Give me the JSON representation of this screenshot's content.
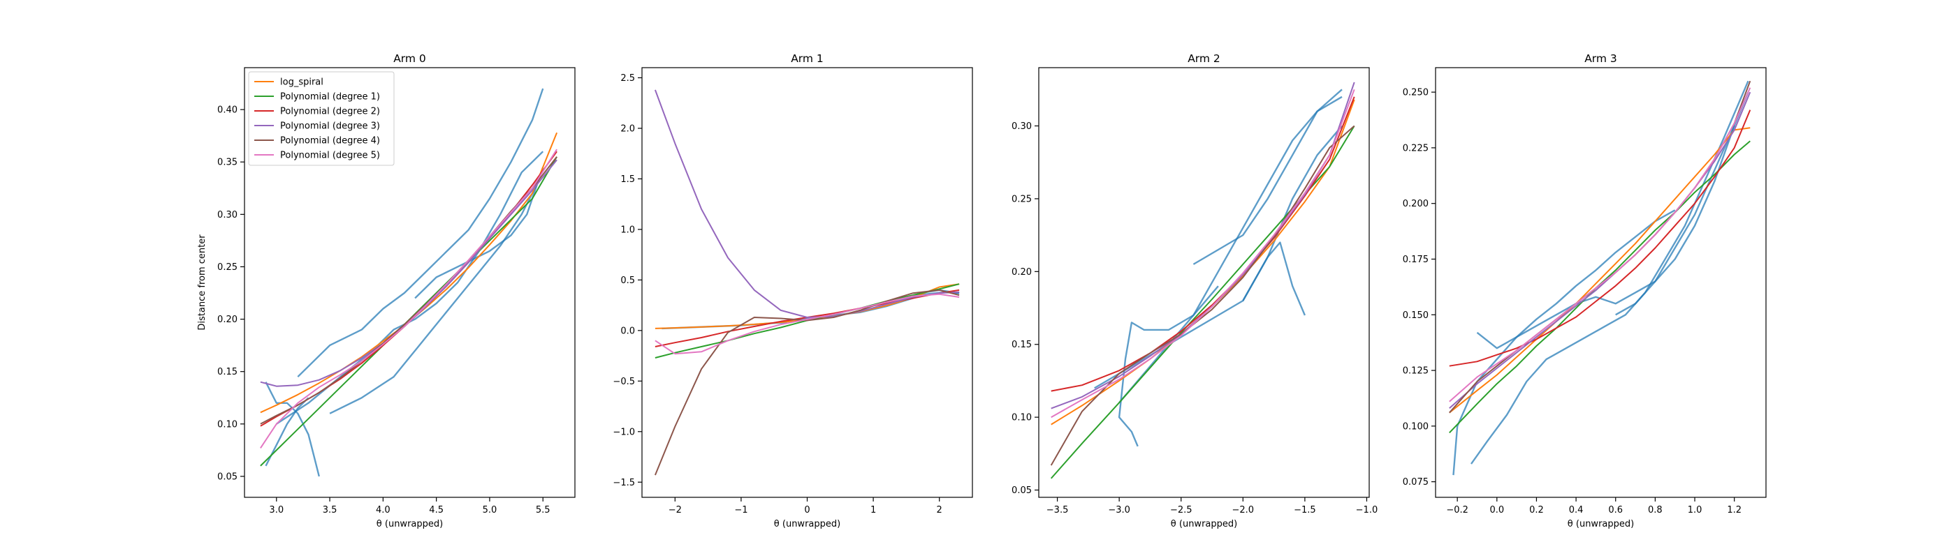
{
  "chart_data": [
    {
      "type": "line",
      "title": "Arm 0",
      "xlabel": "θ (unwrapped)",
      "ylabel": "Distance from center",
      "xlim": [
        2.7,
        5.8
      ],
      "ylim": [
        0.03,
        0.44
      ],
      "xticks": [
        3.0,
        3.5,
        4.0,
        4.5,
        5.0,
        5.5
      ],
      "xtick_labels": [
        "3.0",
        "3.5",
        "4.0",
        "4.5",
        "5.0",
        "5.5"
      ],
      "yticks": [
        0.05,
        0.1,
        0.15,
        0.2,
        0.25,
        0.3,
        0.35,
        0.4
      ],
      "ytick_labels": [
        "0.05",
        "0.10",
        "0.15",
        "0.20",
        "0.25",
        "0.30",
        "0.35",
        "0.40"
      ],
      "legend": {
        "location": "upper-left",
        "entries": [
          "log_spiral",
          "Polynomial (degree 1)",
          "Polynomial (degree 2)",
          "Polynomial (degree 3)",
          "Polynomial (degree 4)",
          "Polynomial (degree 5)"
        ]
      },
      "data_traces": [
        {
          "x": [
            3.4,
            3.35,
            3.3,
            3.2,
            3.1,
            3.0,
            2.95,
            2.9
          ],
          "y": [
            0.05,
            0.07,
            0.09,
            0.11,
            0.12,
            0.12,
            0.13,
            0.14
          ]
        },
        {
          "x": [
            2.9,
            3.0,
            3.1,
            3.2,
            3.3
          ],
          "y": [
            0.06,
            0.08,
            0.1,
            0.115,
            0.125
          ]
        },
        {
          "x": [
            3.2,
            3.5,
            3.8,
            4.0,
            4.2,
            4.4,
            4.6,
            4.8,
            5.0,
            5.2,
            5.4,
            5.5
          ],
          "y": [
            0.145,
            0.175,
            0.19,
            0.21,
            0.225,
            0.245,
            0.265,
            0.285,
            0.315,
            0.35,
            0.39,
            0.42
          ]
        },
        {
          "x": [
            3.0,
            3.3,
            3.6,
            3.9,
            4.1,
            4.3,
            4.5,
            4.7,
            4.9,
            5.1,
            5.3,
            5.5
          ],
          "y": [
            0.1,
            0.12,
            0.145,
            0.17,
            0.19,
            0.2,
            0.215,
            0.235,
            0.265,
            0.3,
            0.34,
            0.36
          ]
        },
        {
          "x": [
            3.5,
            3.8,
            4.1,
            4.3,
            4.5,
            4.7,
            4.9,
            5.1,
            5.3,
            5.45
          ],
          "y": [
            0.11,
            0.125,
            0.145,
            0.17,
            0.195,
            0.22,
            0.245,
            0.27,
            0.3,
            0.33
          ]
        },
        {
          "x": [
            4.3,
            4.5,
            4.8,
            5.0,
            5.2,
            5.35,
            5.5
          ],
          "y": [
            0.22,
            0.24,
            0.255,
            0.265,
            0.28,
            0.3,
            0.345
          ]
        }
      ],
      "fit_lines": {
        "x": [
          2.85,
          3.0,
          3.2,
          3.4,
          3.6,
          3.8,
          4.0,
          4.2,
          4.4,
          4.6,
          4.8,
          5.0,
          5.2,
          5.4,
          5.63
        ],
        "log_spiral": [
          0.111,
          0.118,
          0.128,
          0.139,
          0.151,
          0.164,
          0.179,
          0.194,
          0.211,
          0.229,
          0.249,
          0.271,
          0.294,
          0.32,
          0.378
        ],
        "degree_1": [
          0.06,
          0.075,
          0.095,
          0.115,
          0.135,
          0.155,
          0.175,
          0.195,
          0.215,
          0.235,
          0.255,
          0.275,
          0.295,
          0.315,
          0.355
        ],
        "degree_2": [
          0.098,
          0.107,
          0.118,
          0.13,
          0.143,
          0.158,
          0.175,
          0.193,
          0.212,
          0.232,
          0.254,
          0.278,
          0.302,
          0.328,
          0.36
        ],
        "degree_3": [
          0.14,
          0.136,
          0.137,
          0.142,
          0.151,
          0.163,
          0.177,
          0.193,
          0.212,
          0.232,
          0.254,
          0.277,
          0.3,
          0.323,
          0.352
        ],
        "degree_4": [
          0.1,
          0.108,
          0.118,
          0.13,
          0.144,
          0.16,
          0.177,
          0.195,
          0.214,
          0.234,
          0.256,
          0.279,
          0.303,
          0.325,
          0.355
        ],
        "degree_5": [
          0.077,
          0.1,
          0.12,
          0.135,
          0.147,
          0.16,
          0.176,
          0.193,
          0.213,
          0.234,
          0.256,
          0.279,
          0.302,
          0.325,
          0.362
        ]
      }
    },
    {
      "type": "line",
      "title": "Arm 1",
      "xlabel": "θ (unwrapped)",
      "ylabel": "",
      "xlim": [
        -2.5,
        2.5
      ],
      "ylim": [
        -1.65,
        2.6
      ],
      "xticks": [
        -2,
        -1,
        0,
        1,
        2
      ],
      "xtick_labels": [
        "−2",
        "−1",
        "0",
        "1",
        "2"
      ],
      "yticks": [
        -1.5,
        -1.0,
        -0.5,
        0.0,
        0.5,
        1.0,
        1.5,
        2.0,
        2.5
      ],
      "ytick_labels": [
        "−1.5",
        "−1.0",
        "−0.5",
        "0.0",
        "0.5",
        "1.0",
        "1.5",
        "2.0",
        "2.5"
      ],
      "data_traces": [
        {
          "x": [
            -2.2,
            -1.8,
            -1.4,
            -1.0,
            -0.6,
            -0.3
          ],
          "y": [
            0.02,
            0.03,
            0.04,
            0.05,
            0.07,
            0.08
          ]
        },
        {
          "x": [
            -0.3,
            0.0,
            0.4,
            0.8,
            1.2,
            1.5,
            1.8,
            2.1,
            2.3
          ],
          "y": [
            0.1,
            0.12,
            0.15,
            0.18,
            0.24,
            0.3,
            0.36,
            0.38,
            0.37
          ]
        },
        {
          "x": [
            1.4,
            1.6,
            1.8,
            2.0,
            2.2,
            2.3
          ],
          "y": [
            0.3,
            0.34,
            0.38,
            0.4,
            0.38,
            0.37
          ]
        }
      ],
      "fit_lines": {
        "x": [
          -2.3,
          -2.0,
          -1.6,
          -1.2,
          -0.8,
          -0.4,
          0.0,
          0.4,
          0.8,
          1.2,
          1.6,
          2.0,
          2.3
        ],
        "log_spiral": [
          0.02,
          0.026,
          0.035,
          0.046,
          0.061,
          0.081,
          0.107,
          0.141,
          0.186,
          0.246,
          0.325,
          0.43,
          0.46
        ],
        "degree_1": [
          -0.27,
          -0.22,
          -0.16,
          -0.1,
          -0.03,
          0.03,
          0.1,
          0.16,
          0.22,
          0.29,
          0.35,
          0.41,
          0.46
        ],
        "degree_2": [
          -0.16,
          -0.12,
          -0.07,
          -0.01,
          0.04,
          0.09,
          0.13,
          0.17,
          0.22,
          0.27,
          0.32,
          0.37,
          0.4
        ],
        "degree_3": [
          2.38,
          1.85,
          1.2,
          0.72,
          0.4,
          0.2,
          0.13,
          0.14,
          0.19,
          0.26,
          0.33,
          0.37,
          0.38
        ],
        "degree_4": [
          -1.43,
          -0.95,
          -0.38,
          -0.02,
          0.13,
          0.12,
          0.1,
          0.13,
          0.2,
          0.29,
          0.37,
          0.4,
          0.35
        ],
        "degree_5": [
          -0.1,
          -0.23,
          -0.21,
          -0.1,
          -0.01,
          0.06,
          0.11,
          0.16,
          0.22,
          0.28,
          0.34,
          0.36,
          0.33
        ]
      }
    },
    {
      "type": "line",
      "title": "Arm 2",
      "xlabel": "θ (unwrapped)",
      "ylabel": "",
      "xlim": [
        -3.65,
        -0.98
      ],
      "ylim": [
        0.045,
        0.34
      ],
      "xticks": [
        -3.5,
        -3.0,
        -2.5,
        -2.0,
        -1.5,
        -1.0
      ],
      "xtick_labels": [
        "−3.5",
        "−3.0",
        "−2.5",
        "−2.0",
        "−1.5",
        "−1.0"
      ],
      "yticks": [
        0.05,
        0.1,
        0.15,
        0.2,
        0.25,
        0.3
      ],
      "ytick_labels": [
        "0.05",
        "0.10",
        "0.15",
        "0.20",
        "0.25",
        "0.30"
      ],
      "data_traces": [
        {
          "x": [
            -2.85,
            -2.9,
            -3.0,
            -2.95,
            -2.9,
            -2.8,
            -2.6,
            -2.4,
            -2.2
          ],
          "y": [
            0.08,
            0.09,
            0.1,
            0.14,
            0.165,
            0.16,
            0.16,
            0.17,
            0.19
          ]
        },
        {
          "x": [
            -3.0,
            -2.8,
            -2.6,
            -2.4,
            -2.2,
            -2.0,
            -1.8,
            -1.6,
            -1.4,
            -1.2
          ],
          "y": [
            0.11,
            0.13,
            0.15,
            0.17,
            0.2,
            0.23,
            0.26,
            0.29,
            0.31,
            0.32
          ]
        },
        {
          "x": [
            -2.4,
            -2.2,
            -2.0,
            -1.8,
            -1.6,
            -1.4,
            -1.2
          ],
          "y": [
            0.205,
            0.215,
            0.225,
            0.25,
            0.28,
            0.31,
            0.325
          ]
        },
        {
          "x": [
            -3.2,
            -2.9,
            -2.6,
            -2.3,
            -2.0,
            -1.8,
            -1.6,
            -1.4,
            -1.2
          ],
          "y": [
            0.12,
            0.135,
            0.15,
            0.165,
            0.18,
            0.21,
            0.25,
            0.28,
            0.3
          ]
        },
        {
          "x": [
            -2.0,
            -1.8,
            -1.7,
            -1.6,
            -1.5
          ],
          "y": [
            0.18,
            0.21,
            0.22,
            0.19,
            0.17
          ]
        }
      ],
      "fit_lines": {
        "x": [
          -3.55,
          -3.3,
          -3.0,
          -2.75,
          -2.5,
          -2.25,
          -2.0,
          -1.75,
          -1.5,
          -1.3,
          -1.1
        ],
        "log_spiral": [
          0.095,
          0.108,
          0.125,
          0.14,
          0.157,
          0.176,
          0.197,
          0.221,
          0.248,
          0.272,
          0.318
        ],
        "degree_1": [
          0.058,
          0.082,
          0.11,
          0.134,
          0.158,
          0.181,
          0.205,
          0.229,
          0.253,
          0.272,
          0.3
        ],
        "degree_2": [
          0.118,
          0.122,
          0.132,
          0.144,
          0.159,
          0.177,
          0.198,
          0.223,
          0.252,
          0.277,
          0.32
        ],
        "degree_3": [
          0.106,
          0.114,
          0.128,
          0.142,
          0.157,
          0.176,
          0.198,
          0.224,
          0.253,
          0.28,
          0.33
        ],
        "degree_4": [
          0.067,
          0.104,
          0.13,
          0.144,
          0.157,
          0.174,
          0.196,
          0.224,
          0.257,
          0.285,
          0.3
        ],
        "degree_5": [
          0.1,
          0.112,
          0.126,
          0.14,
          0.156,
          0.176,
          0.199,
          0.225,
          0.254,
          0.28,
          0.325
        ]
      }
    },
    {
      "type": "line",
      "title": "Arm 3",
      "xlabel": "θ (unwrapped)",
      "ylabel": "",
      "xlim": [
        -0.31,
        1.36
      ],
      "ylim": [
        0.068,
        0.261
      ],
      "xticks": [
        -0.2,
        0.0,
        0.2,
        0.4,
        0.6,
        0.8,
        1.0,
        1.2
      ],
      "xtick_labels": [
        "−0.2",
        "0.0",
        "0.2",
        "0.4",
        "0.6",
        "0.8",
        "1.0",
        "1.2"
      ],
      "yticks": [
        0.075,
        0.1,
        0.125,
        0.15,
        0.175,
        0.2,
        0.225,
        0.25
      ],
      "ytick_labels": [
        "0.075",
        "0.100",
        "0.125",
        "0.150",
        "0.175",
        "0.200",
        "0.225",
        "0.250"
      ],
      "data_traces": [
        {
          "x": [
            -0.22,
            -0.2,
            -0.15,
            -0.1,
            0.0,
            0.1,
            0.2,
            0.3,
            0.4,
            0.5,
            0.6,
            0.7,
            0.8,
            0.9
          ],
          "y": [
            0.078,
            0.1,
            0.11,
            0.12,
            0.13,
            0.14,
            0.148,
            0.155,
            0.163,
            0.17,
            0.178,
            0.185,
            0.192,
            0.197
          ]
        },
        {
          "x": [
            -0.13,
            -0.05,
            0.05,
            0.15,
            0.25,
            0.35,
            0.45,
            0.55,
            0.65,
            0.75,
            0.85,
            0.95,
            1.05,
            1.15,
            1.27
          ],
          "y": [
            0.083,
            0.093,
            0.105,
            0.12,
            0.13,
            0.135,
            0.14,
            0.145,
            0.15,
            0.16,
            0.175,
            0.19,
            0.21,
            0.23,
            0.255
          ]
        },
        {
          "x": [
            -0.1,
            0.0,
            0.2,
            0.4,
            0.5,
            0.6,
            0.7,
            0.8,
            0.9,
            1.0,
            1.1,
            1.2
          ],
          "y": [
            0.142,
            0.135,
            0.145,
            0.155,
            0.158,
            0.155,
            0.16,
            0.165,
            0.175,
            0.19,
            0.21,
            0.235
          ]
        },
        {
          "x": [
            0.6,
            0.7,
            0.8,
            0.9,
            1.0,
            1.1,
            1.2,
            1.27
          ],
          "y": [
            0.15,
            0.155,
            0.165,
            0.18,
            0.195,
            0.215,
            0.235,
            0.25
          ]
        }
      ],
      "fit_lines": {
        "x": [
          -0.24,
          -0.1,
          0.0,
          0.1,
          0.2,
          0.3,
          0.4,
          0.5,
          0.6,
          0.7,
          0.8,
          0.9,
          1.0,
          1.1,
          1.2,
          1.28
        ],
        "log_spiral": [
          0.106,
          0.116,
          0.123,
          0.131,
          0.139,
          0.147,
          0.155,
          0.164,
          0.173,
          0.182,
          0.192,
          0.202,
          0.212,
          0.222,
          0.233,
          0.234
        ],
        "degree_1": [
          0.097,
          0.11,
          0.119,
          0.127,
          0.136,
          0.144,
          0.153,
          0.162,
          0.17,
          0.179,
          0.188,
          0.196,
          0.205,
          0.213,
          0.222,
          0.228
        ],
        "degree_2": [
          0.127,
          0.129,
          0.132,
          0.135,
          0.139,
          0.144,
          0.149,
          0.156,
          0.163,
          0.171,
          0.18,
          0.19,
          0.2,
          0.212,
          0.225,
          0.242
        ],
        "degree_3": [
          0.108,
          0.119,
          0.126,
          0.133,
          0.14,
          0.147,
          0.154,
          0.161,
          0.169,
          0.177,
          0.186,
          0.196,
          0.207,
          0.219,
          0.233,
          0.25
        ],
        "degree_4": [
          0.106,
          0.12,
          0.127,
          0.134,
          0.141,
          0.148,
          0.155,
          0.162,
          0.169,
          0.177,
          0.186,
          0.196,
          0.207,
          0.22,
          0.236,
          0.255
        ],
        "degree_5": [
          0.111,
          0.122,
          0.128,
          0.134,
          0.141,
          0.148,
          0.155,
          0.162,
          0.169,
          0.177,
          0.186,
          0.196,
          0.207,
          0.22,
          0.236,
          0.252
        ]
      }
    }
  ],
  "series_names": {
    "log_spiral": "log_spiral",
    "degree_1": "Polynomial (degree 1)",
    "degree_2": "Polynomial (degree 2)",
    "degree_3": "Polynomial (degree 3)",
    "degree_4": "Polynomial (degree 4)",
    "degree_5": "Polynomial (degree 5)"
  },
  "colors": {
    "data": "#1f77b4",
    "log_spiral": "#ff7f0e",
    "degree_1": "#2ca02c",
    "degree_2": "#d62728",
    "degree_3": "#9467bd",
    "degree_4": "#8c564b",
    "degree_5": "#e377c2"
  }
}
